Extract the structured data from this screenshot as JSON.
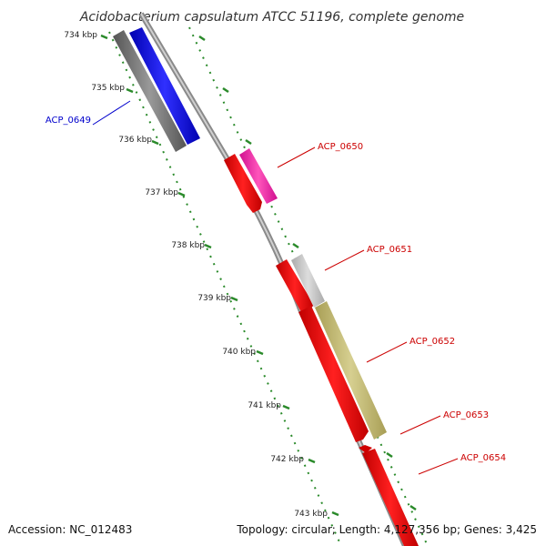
{
  "title": "Acidobacterium capsulatum ATCC 51196, complete genome",
  "accession": "Accession: NC_012483",
  "topology": "Topology: circular; Length: 4,127,356 bp; Genes: 3,425",
  "ticks": [
    "734 kbp",
    "735 kbp",
    "736 kbp",
    "737 kbp",
    "738 kbp",
    "739 kbp",
    "740 kbp",
    "741 kbp",
    "742 kbp",
    "743 kbp"
  ],
  "genes": [
    {
      "label": "ACP_0649",
      "color": "#0000cc"
    },
    {
      "label": "ACP_0650",
      "color": "#cc0000"
    },
    {
      "label": "ACP_0651",
      "color": "#cc0000"
    },
    {
      "label": "ACP_0652",
      "color": "#cc0000"
    },
    {
      "label": "ACP_0653",
      "color": "#cc0000"
    },
    {
      "label": "ACP_0654",
      "color": "#cc0000"
    }
  ],
  "colors": {
    "backbone": "#999999",
    "tick_marks": "#2a8a2a",
    "gene_blue": "#0000ff",
    "gene_red": "#ff0000",
    "gene_gray": "#777777",
    "gene_pink": "#ff44aa",
    "gene_silver": "#c8c8c8",
    "gene_olive": "#c8c07a"
  }
}
